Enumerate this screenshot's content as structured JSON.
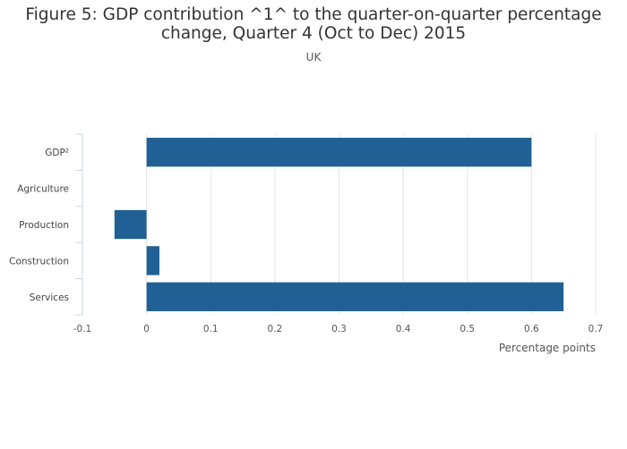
{
  "title_line1": "Figure 5: GDP contribution ^1^ to the quarter-on-quarter percentage",
  "title_line2": "change, Quarter 4 (Oct to Dec) 2015",
  "subtitle": "UK",
  "colors": {
    "bar": "#206095",
    "grid": "#e5e5e5",
    "axis": "#c8d4e0"
  },
  "chart_data": {
    "type": "bar",
    "orientation": "horizontal",
    "title": "Figure 5: GDP contribution ^1^ to the quarter-on-quarter percentage change, Quarter 4 (Oct to Dec) 2015",
    "subtitle": "UK",
    "categories": [
      "GDP²",
      "Agriculture",
      "Production",
      "Construction",
      "Services"
    ],
    "values": [
      0.6,
      0.0,
      -0.05,
      0.02,
      0.65
    ],
    "xlabel": "Percentage points",
    "ylabel": "",
    "xlim": [
      -0.1,
      0.7
    ],
    "xticks": [
      "-0.1",
      "0",
      "0.1",
      "0.2",
      "0.3",
      "0.4",
      "0.5",
      "0.6",
      "0.7"
    ],
    "grid": true,
    "legend": "none"
  }
}
